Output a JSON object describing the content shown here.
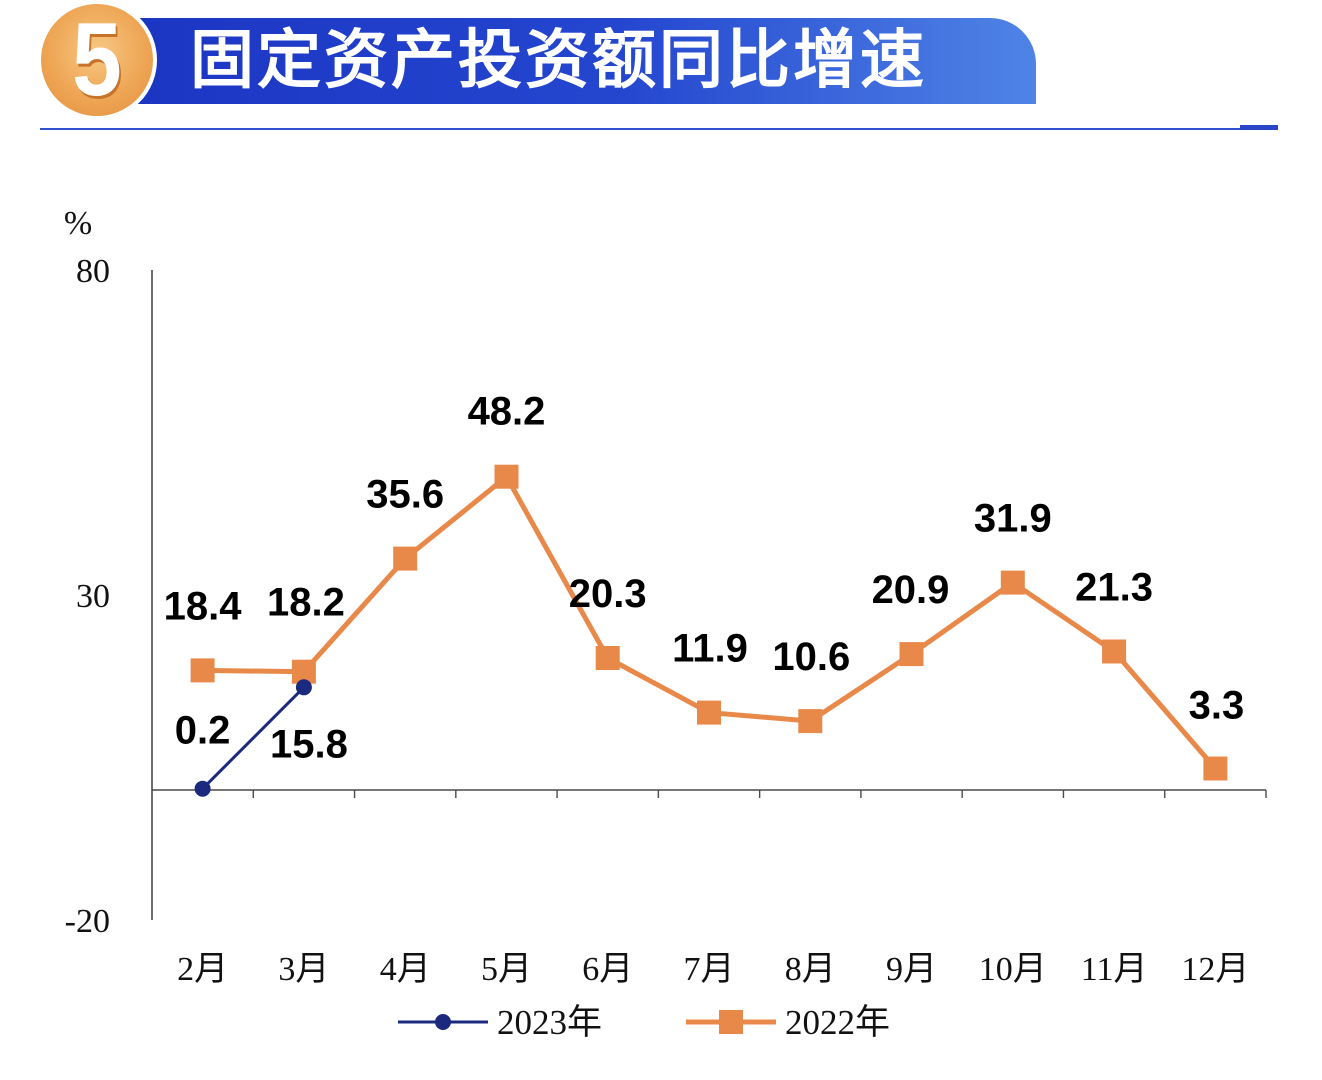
{
  "header": {
    "section_number": "5"
  },
  "theme": {
    "banner_left": "#1b35c3",
    "banner_mid": "#2446cf",
    "banner_right": "#4f84e6",
    "rule": "#3350cf"
  },
  "chart_data": {
    "type": "line",
    "title": "固定资产投资额同比增速",
    "xlabel": "",
    "ylabel": "%",
    "categories": [
      "2月",
      "3月",
      "4月",
      "5月",
      "6月",
      "7月",
      "8月",
      "9月",
      "10月",
      "11月",
      "12月"
    ],
    "ylim": [
      -20,
      80
    ],
    "yticks": [
      80,
      30,
      -20
    ],
    "grid": false,
    "legend": "bottom",
    "series": [
      {
        "name": "2023年",
        "color": "#1b2a7e",
        "marker": "circle",
        "values": [
          0.2,
          15.8,
          null,
          null,
          null,
          null,
          null,
          null,
          null,
          null,
          null
        ]
      },
      {
        "name": "2022年",
        "color": "#e8894a",
        "marker": "square",
        "values": [
          18.4,
          18.2,
          35.6,
          48.2,
          20.3,
          11.9,
          10.6,
          20.9,
          31.9,
          21.3,
          3.3
        ]
      }
    ]
  }
}
